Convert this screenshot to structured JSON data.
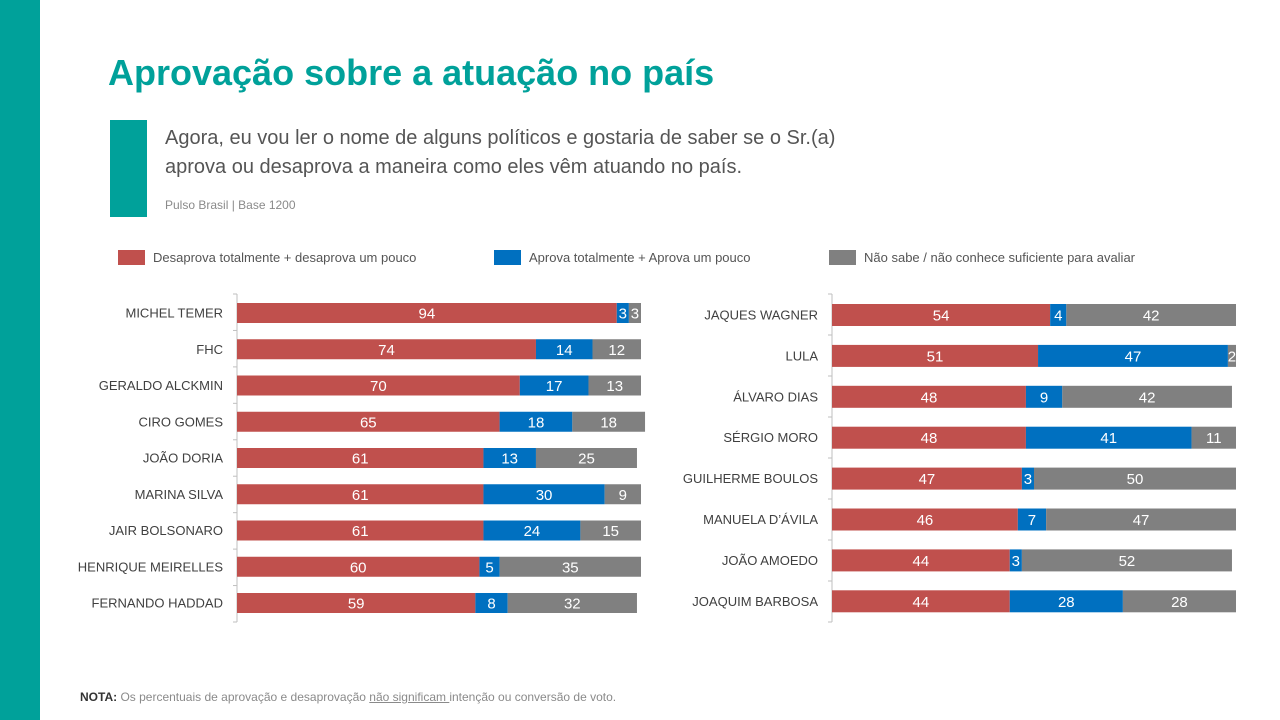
{
  "title": "Aprovação sobre a atuação no país",
  "question": "Agora, eu vou ler o nome de alguns políticos e gostaria de saber se o Sr.(a) aprova ou desaprova a maneira como eles vêm atuando no país.",
  "source": "Pulso Brasil | Base 1200",
  "colors": {
    "accent": "#00A19A",
    "desaprova": "#C0504D",
    "aprova": "#0070C0",
    "nao_sabe": "#808080"
  },
  "legend": [
    {
      "label": "Desaprova totalmente + desaprova um pouco",
      "color": "#C0504D"
    },
    {
      "label": "Aprova totalmente + Aprova um pouco",
      "color": "#0070C0"
    },
    {
      "label": "Não sabe / não conhece suficiente para avaliar",
      "color": "#808080"
    }
  ],
  "chart_data": [
    {
      "type": "bar",
      "stacked": true,
      "orientation": "horizontal",
      "xlim": [
        0,
        100
      ],
      "categories": [
        "MICHEL TEMER",
        "FHC",
        "GERALDO ALCKMIN",
        "CIRO GOMES",
        "JOÃO DORIA",
        "MARINA SILVA",
        "JAIR BOLSONARO",
        "HENRIQUE MEIRELLES",
        "FERNANDO HADDAD"
      ],
      "series": [
        {
          "name": "Desaprova totalmente + desaprova um pouco",
          "values": [
            94,
            74,
            70,
            65,
            61,
            61,
            61,
            60,
            59
          ]
        },
        {
          "name": "Aprova totalmente + Aprova um pouco",
          "values": [
            3,
            14,
            17,
            18,
            13,
            30,
            24,
            5,
            8
          ]
        },
        {
          "name": "Não sabe / não conhece suficiente para avaliar",
          "values": [
            3,
            12,
            13,
            18,
            25,
            9,
            15,
            35,
            32
          ]
        }
      ]
    },
    {
      "type": "bar",
      "stacked": true,
      "orientation": "horizontal",
      "xlim": [
        0,
        100
      ],
      "categories": [
        "JAQUES WAGNER",
        "LULA",
        "ÁLVARO DIAS",
        "SÉRGIO MORO",
        "GUILHERME BOULOS",
        "MANUELA D’ÁVILA",
        "JOÃO AMOEDO",
        "JOAQUIM BARBOSA"
      ],
      "series": [
        {
          "name": "Desaprova totalmente + desaprova um pouco",
          "values": [
            54,
            51,
            48,
            48,
            47,
            46,
            44,
            44
          ]
        },
        {
          "name": "Aprova totalmente + Aprova um pouco",
          "values": [
            4,
            47,
            9,
            41,
            3,
            7,
            3,
            28
          ]
        },
        {
          "name": "Não sabe / não conhece suficiente para avaliar",
          "values": [
            42,
            2,
            42,
            11,
            50,
            47,
            52,
            28
          ]
        }
      ]
    }
  ],
  "note": {
    "label": "NOTA:",
    "text_before": " Os percentuais de aprovação e desaprovação ",
    "underlined": "não significam ",
    "text_after": "intenção ou conversão de voto."
  }
}
